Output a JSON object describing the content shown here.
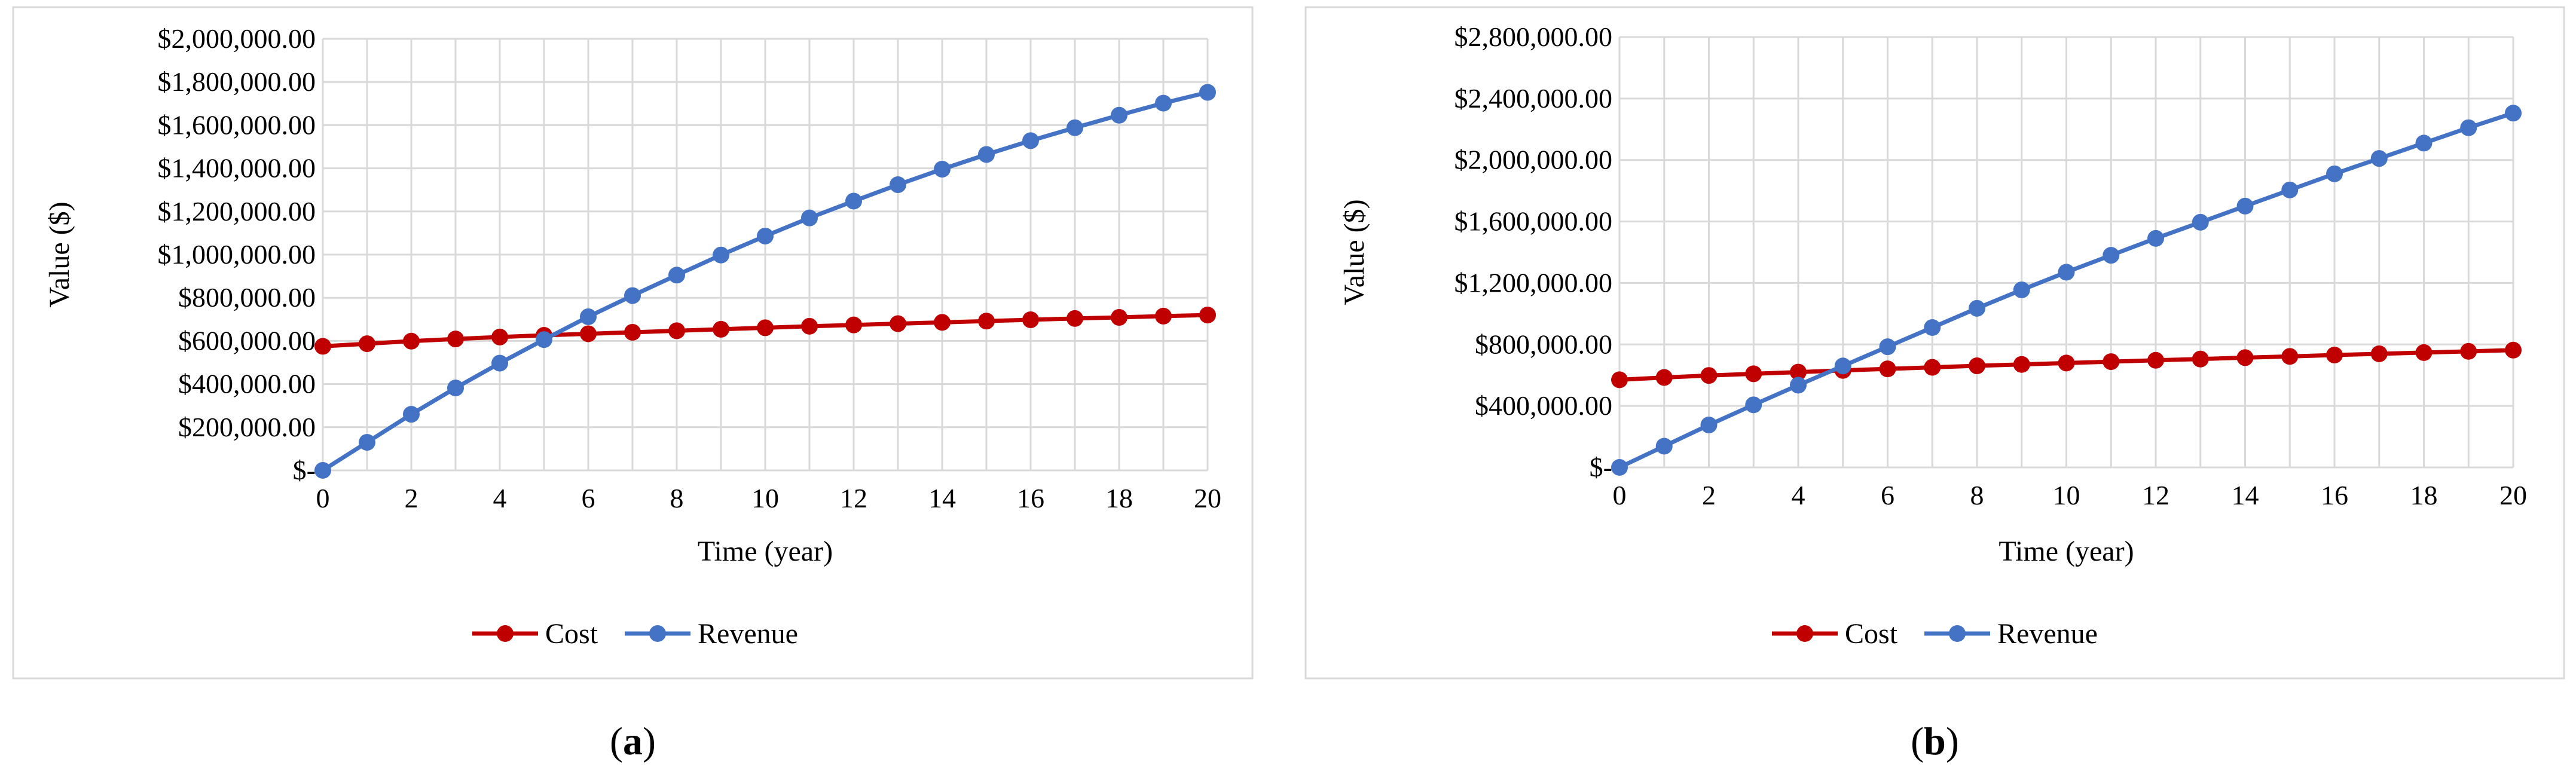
{
  "colors": {
    "cost": "#C00000",
    "revenue": "#4472C4",
    "grid": "#D9D9D9",
    "frame": "#D9D9D9"
  },
  "chart_data": [
    {
      "type": "line",
      "panel_label": "a",
      "xlabel": "Time (year)",
      "ylabel": "Value ($)",
      "x": [
        0,
        1,
        2,
        3,
        4,
        5,
        6,
        7,
        8,
        9,
        10,
        11,
        12,
        13,
        14,
        15,
        16,
        17,
        18,
        19,
        20
      ],
      "x_ticks": [
        0,
        2,
        4,
        6,
        8,
        10,
        12,
        14,
        16,
        18,
        20
      ],
      "xlim": [
        0,
        20
      ],
      "ylim": [
        0,
        2000000
      ],
      "y_ticks": [
        0,
        200000,
        400000,
        600000,
        800000,
        1000000,
        1200000,
        1400000,
        1600000,
        1800000,
        2000000
      ],
      "y_tick_labels": [
        "$-",
        "$200,000.00",
        "$400,000.00",
        "$600,000.00",
        "$800,000.00",
        "$1,000,000.00",
        "$1,200,000.00",
        "$1,400,000.00",
        "$1,600,000.00",
        "$1,800,000.00",
        "$2,000,000.00"
      ],
      "grid": true,
      "legend_position": "bottom",
      "series": [
        {
          "name": "Cost",
          "values": [
            575000,
            587000,
            599000,
            609000,
            618000,
            626000,
            633000,
            640000,
            647000,
            654000,
            661000,
            668000,
            674000,
            680000,
            686000,
            692000,
            698000,
            704000,
            709000,
            715000,
            720000
          ]
        },
        {
          "name": "Revenue",
          "values": [
            0,
            130000,
            260000,
            382000,
            497000,
            606000,
            712000,
            810000,
            905000,
            998000,
            1086000,
            1170000,
            1248000,
            1324000,
            1396000,
            1464000,
            1528000,
            1588000,
            1646000,
            1702000,
            1752000
          ]
        }
      ]
    },
    {
      "type": "line",
      "panel_label": "b",
      "xlabel": "Time (year)",
      "ylabel": "Value ($)",
      "x": [
        0,
        1,
        2,
        3,
        4,
        5,
        6,
        7,
        8,
        9,
        10,
        11,
        12,
        13,
        14,
        15,
        16,
        17,
        18,
        19,
        20
      ],
      "x_ticks": [
        0,
        2,
        4,
        6,
        8,
        10,
        12,
        14,
        16,
        18,
        20
      ],
      "xlim": [
        0,
        20
      ],
      "ylim": [
        0,
        2800000
      ],
      "y_ticks": [
        0,
        400000,
        800000,
        1200000,
        1600000,
        2000000,
        2400000,
        2800000
      ],
      "y_tick_labels": [
        "$-",
        "$400,000.00",
        "$800,000.00",
        "$1,200,000.00",
        "$1,600,000.00",
        "$2,000,000.00",
        "$2,400,000.00",
        "$2,800,000.00"
      ],
      "grid": true,
      "legend_position": "bottom",
      "series": [
        {
          "name": "Cost",
          "values": [
            570000,
            585000,
            598000,
            609000,
            620000,
            631000,
            641000,
            651000,
            661000,
            670000,
            679000,
            688000,
            697000,
            705000,
            714000,
            722000,
            731000,
            739000,
            747000,
            755000,
            763000
          ]
        },
        {
          "name": "Revenue",
          "values": [
            0,
            138000,
            276000,
            407000,
            535000,
            660000,
            785000,
            910000,
            1035000,
            1155000,
            1270000,
            1380000,
            1490000,
            1595000,
            1700000,
            1805000,
            1910000,
            2010000,
            2110000,
            2210000,
            2305000
          ]
        }
      ]
    }
  ]
}
